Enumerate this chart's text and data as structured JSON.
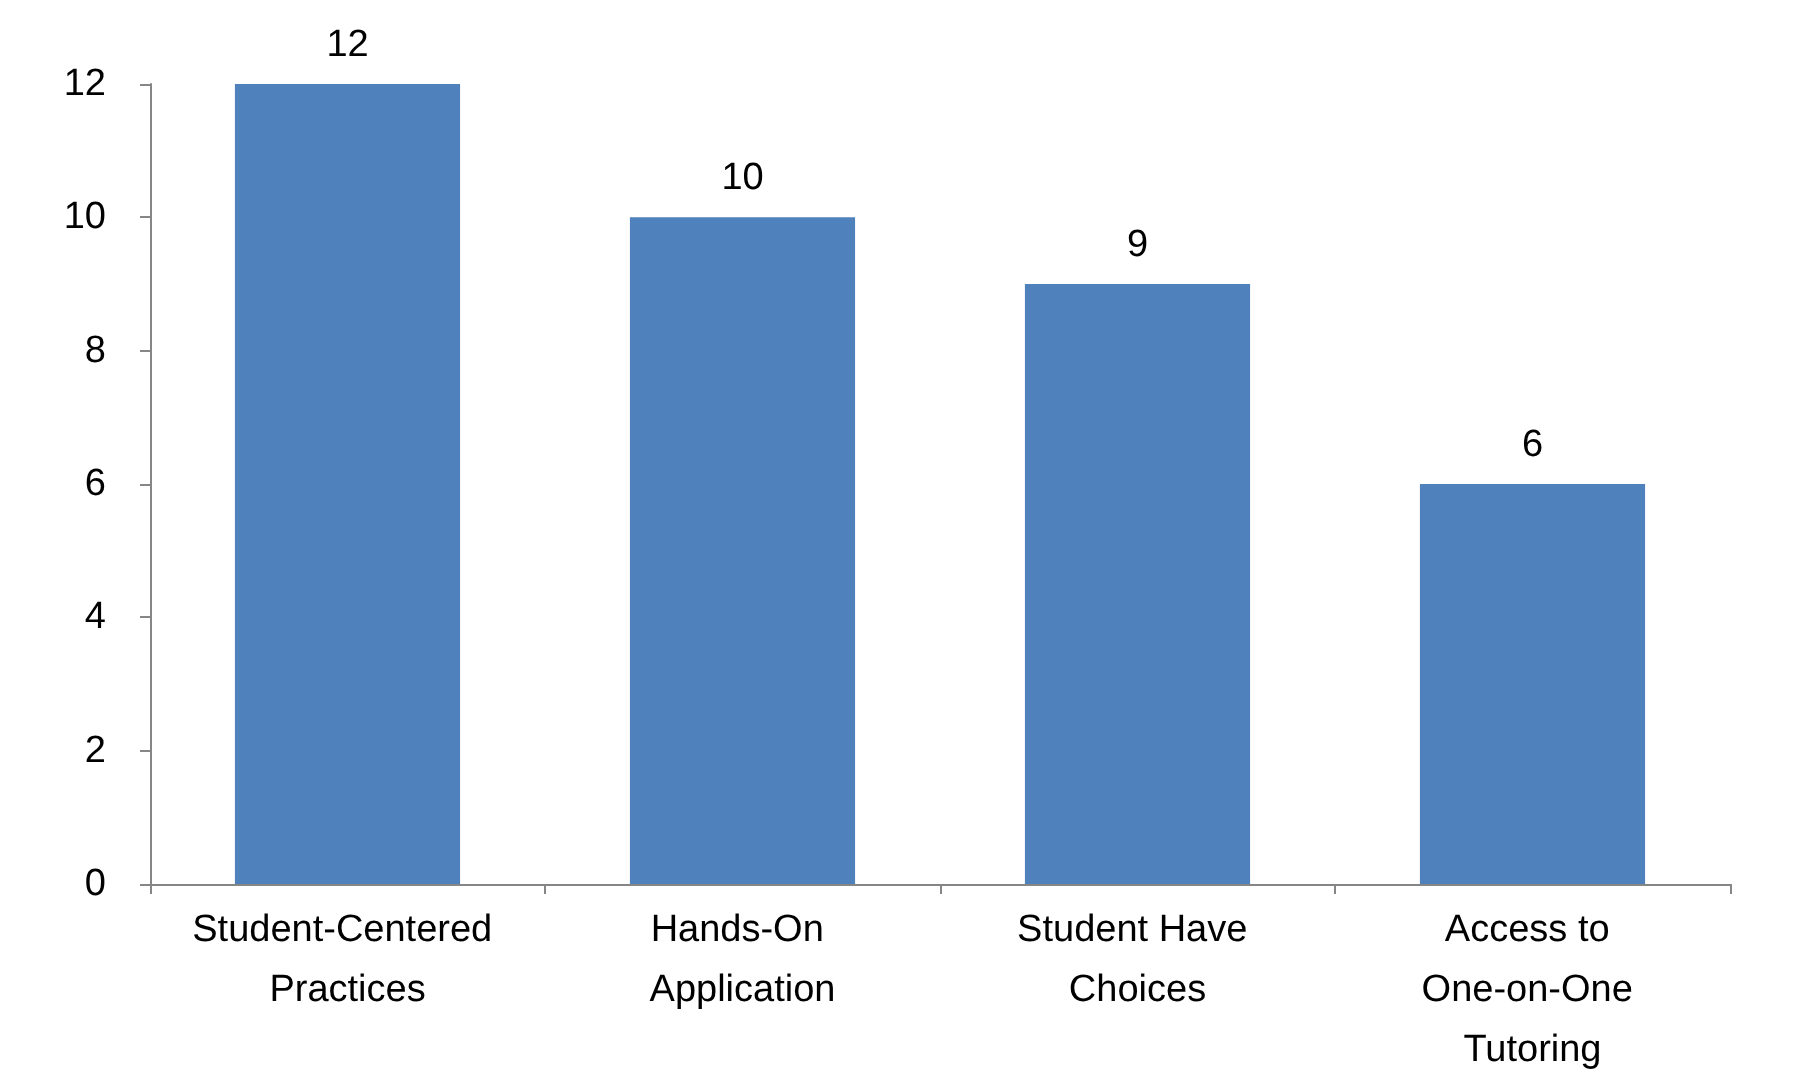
{
  "chart_data": {
    "type": "bar",
    "categories": [
      "Student-Centered Practices",
      "Hands-On Application",
      "Student Have Choices",
      "Access to One-on-One Tutoring"
    ],
    "values": [
      12,
      10,
      9,
      6
    ],
    "color": "#4f81bd",
    "ylim": [
      0,
      12
    ],
    "yticks": [
      0,
      2,
      4,
      6,
      8,
      10,
      12
    ],
    "grid": false,
    "data_labels": true
  }
}
